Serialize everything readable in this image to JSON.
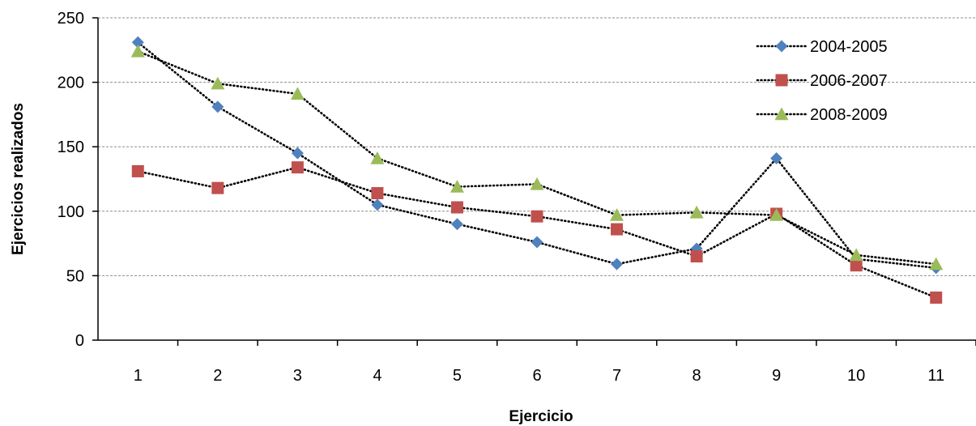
{
  "chart_data": {
    "type": "line",
    "title": "",
    "xlabel": "Ejercicio",
    "ylabel": "Ejercicios realizados",
    "categories": [
      "1",
      "2",
      "3",
      "4",
      "5",
      "6",
      "7",
      "8",
      "9",
      "10",
      "11"
    ],
    "ylim": [
      0,
      250
    ],
    "yticks": [
      "0",
      "50",
      "100",
      "150",
      "200",
      "250"
    ],
    "grid": true,
    "legend_position": "top-right",
    "series": [
      {
        "name": "2004-2005",
        "marker": "diamond",
        "color": "#4F81BD",
        "values": [
          231,
          181,
          145,
          105,
          90,
          76,
          59,
          71,
          141,
          63,
          56
        ]
      },
      {
        "name": "2006-2007",
        "marker": "square",
        "color": "#C0504D",
        "values": [
          131,
          118,
          134,
          114,
          103,
          96,
          86,
          65,
          98,
          58,
          33
        ]
      },
      {
        "name": "2008-2009",
        "marker": "triangle",
        "color": "#9BBB59",
        "values": [
          224,
          199,
          191,
          141,
          119,
          121,
          97,
          99,
          97,
          66,
          59
        ]
      }
    ]
  }
}
